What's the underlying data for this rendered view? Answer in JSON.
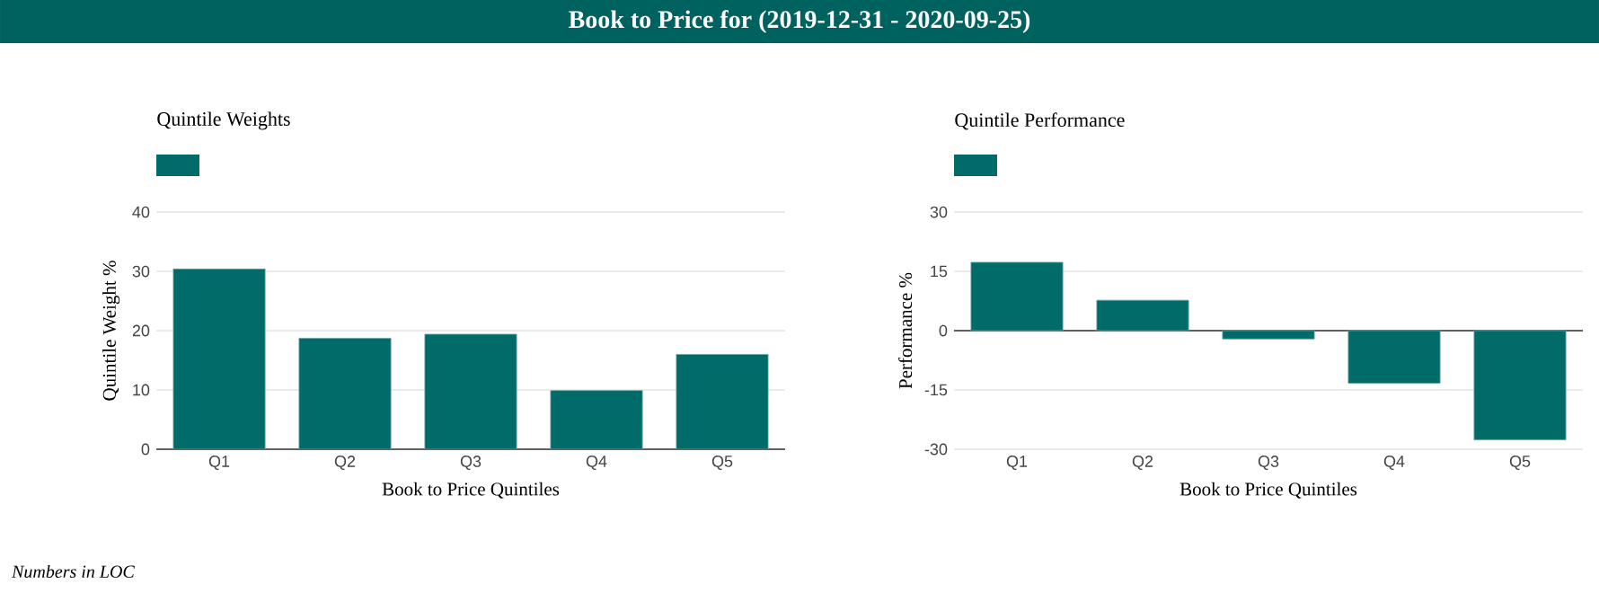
{
  "chart_data": [
    {
      "type": "other",
      "title": "Book to Price for (2019-12-31 - 2020-09-25)",
      "annotations": [
        "Numbers in LOC"
      ]
    },
    {
      "type": "bar",
      "title": "Quintile Weights",
      "xlabel": "Book to Price Quintiles",
      "ylabel": "Quintile Weight %",
      "categories": [
        "Q1",
        "Q2",
        "Q3",
        "Q4",
        "Q5"
      ],
      "series": [
        {
          "color": "#006b68",
          "values": [
            30.4,
            18.7,
            19.4,
            9.9,
            16.0
          ]
        }
      ],
      "ylim": [
        0,
        40
      ],
      "yticks": [
        0,
        10,
        20,
        30,
        40
      ],
      "grid": "y"
    },
    {
      "type": "bar",
      "title": "Quintile Performance",
      "xlabel": "Book to Price Quintiles",
      "ylabel": "Performance %",
      "categories": [
        "Q1",
        "Q2",
        "Q3",
        "Q4",
        "Q5"
      ],
      "series": [
        {
          "color": "#006b68",
          "values": [
            17.3,
            7.7,
            -2.1,
            -13.3,
            -27.6
          ]
        }
      ],
      "ylim": [
        -30,
        30
      ],
      "yticks": [
        -30,
        -15,
        0,
        15,
        30
      ],
      "grid": "y"
    }
  ]
}
